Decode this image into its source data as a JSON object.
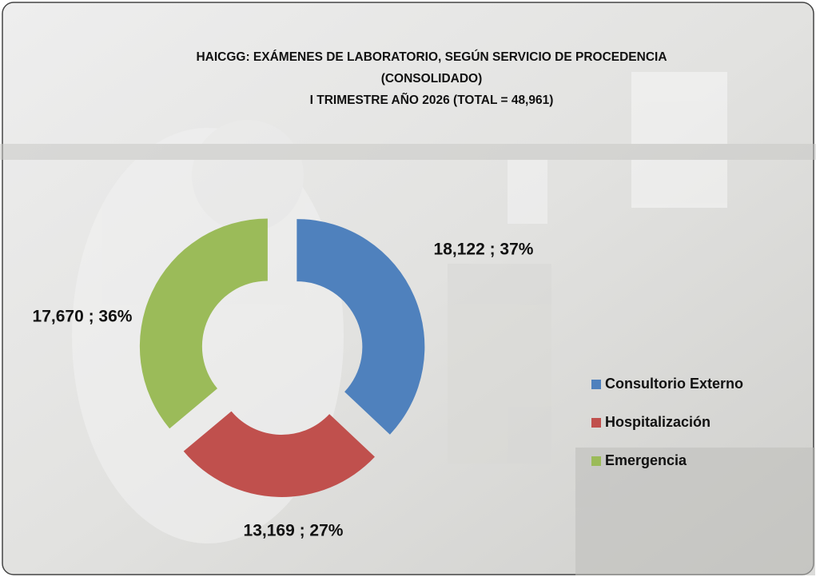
{
  "chart_data": {
    "type": "donut",
    "title": "HAICGG: EXÁMENES DE LABORATORIO, SEGÚN  SERVICIO DE PROCEDENCIA",
    "subtitle": [
      "(CONSOLIDADO)",
      "I TRIMESTRE AÑO 2026 (TOTAL = 48,961)"
    ],
    "categories": [
      "Consultorio Externo",
      "Hospitalización",
      "Emergencia"
    ],
    "values": [
      18122,
      13169,
      17670
    ],
    "value_labels": [
      "18,122 ; 37%",
      "13,169 ; 27%",
      "17,670 ; 36%"
    ],
    "colors": [
      "#4f81bd",
      "#c0504d",
      "#9bbb59"
    ],
    "legend": "right"
  }
}
